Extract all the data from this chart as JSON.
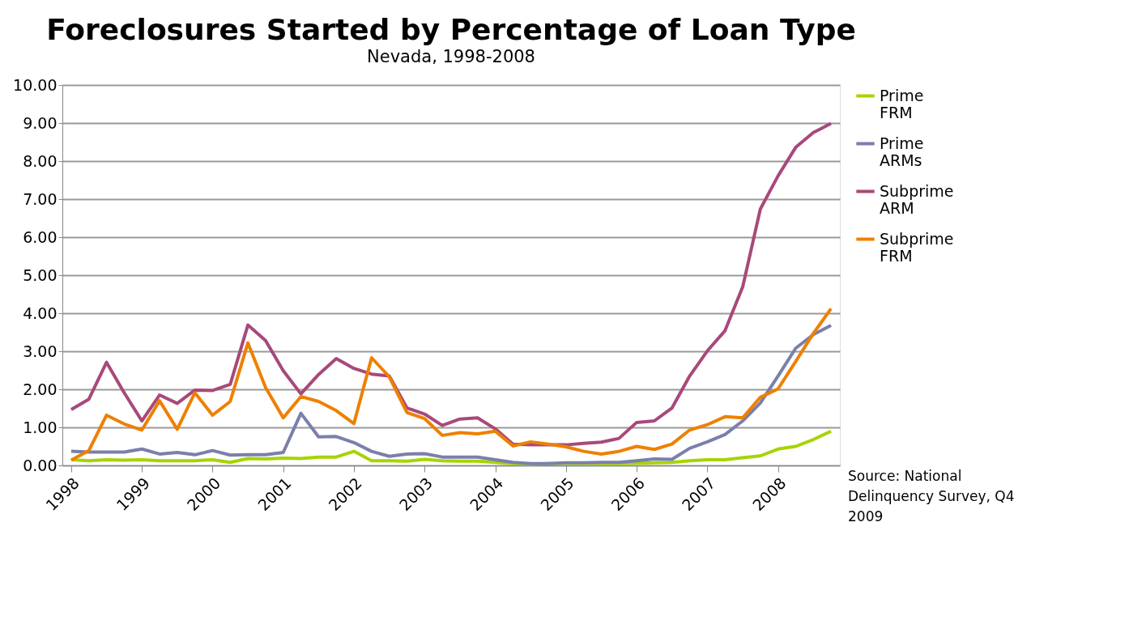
{
  "chart_data": {
    "type": "line",
    "title": "Foreclosures Started by Percentage of Loan Type",
    "subtitle": "Nevada, 1998-2008",
    "categories": [
      "1998",
      null,
      null,
      null,
      "1999",
      null,
      null,
      null,
      "2000",
      null,
      null,
      null,
      "2001",
      null,
      null,
      null,
      "2002",
      null,
      null,
      null,
      "2003",
      null,
      null,
      null,
      "2004",
      null,
      null,
      null,
      "2005",
      null,
      null,
      null,
      "2006",
      null,
      null,
      null,
      "2007",
      null,
      null,
      null,
      "2008",
      null,
      null,
      null
    ],
    "series": [
      {
        "name": "Prime FRM",
        "color": "#a6d400",
        "values": [
          0.15,
          0.12,
          0.15,
          0.14,
          0.15,
          0.12,
          0.12,
          0.12,
          0.15,
          0.08,
          0.18,
          0.17,
          0.19,
          0.18,
          0.22,
          0.22,
          0.37,
          0.12,
          0.12,
          0.11,
          0.16,
          0.12,
          0.11,
          0.11,
          0.08,
          0.05,
          0.03,
          0.05,
          0.05,
          0.05,
          0.05,
          0.05,
          0.06,
          0.07,
          0.08,
          0.12,
          0.15,
          0.15,
          0.2,
          0.25,
          0.43,
          0.5,
          0.68,
          0.9
        ]
      },
      {
        "name": "Prime ARMs",
        "color": "#7b7fab",
        "values": [
          0.37,
          0.35,
          0.35,
          0.35,
          0.43,
          0.3,
          0.34,
          0.28,
          0.39,
          0.27,
          0.28,
          0.28,
          0.34,
          1.37,
          0.75,
          0.76,
          0.6,
          0.37,
          0.24,
          0.3,
          0.31,
          0.22,
          0.22,
          0.22,
          0.15,
          0.08,
          0.05,
          0.05,
          0.07,
          0.07,
          0.08,
          0.08,
          0.12,
          0.17,
          0.16,
          0.45,
          0.62,
          0.81,
          1.17,
          1.64,
          2.35,
          3.08,
          3.44,
          3.68
        ]
      },
      {
        "name": "Subprime ARM",
        "color": "#a8497a",
        "values": [
          1.47,
          1.74,
          2.71,
          1.91,
          1.17,
          1.85,
          1.63,
          1.98,
          1.97,
          2.13,
          3.69,
          3.28,
          2.49,
          1.88,
          2.39,
          2.81,
          2.55,
          2.4,
          2.35,
          1.51,
          1.35,
          1.05,
          1.22,
          1.25,
          0.96,
          0.56,
          0.54,
          0.54,
          0.54,
          0.58,
          0.61,
          0.71,
          1.13,
          1.17,
          1.51,
          2.35,
          3.01,
          3.54,
          4.69,
          6.74,
          7.61,
          8.36,
          8.75,
          8.99
        ]
      },
      {
        "name": "Subprime FRM",
        "color": "#ee8000",
        "values": [
          0.14,
          0.39,
          1.32,
          1.09,
          0.93,
          1.7,
          0.95,
          1.91,
          1.32,
          1.68,
          3.22,
          2.05,
          1.25,
          1.81,
          1.68,
          1.44,
          1.1,
          2.83,
          2.33,
          1.39,
          1.23,
          0.79,
          0.86,
          0.83,
          0.9,
          0.51,
          0.62,
          0.56,
          0.49,
          0.37,
          0.3,
          0.37,
          0.5,
          0.42,
          0.56,
          0.93,
          1.07,
          1.28,
          1.25,
          1.79,
          2.01,
          2.73,
          3.47,
          4.12
        ]
      }
    ],
    "ylim": [
      0,
      10
    ],
    "yticks": [
      {
        "value": 0,
        "label": "0.00"
      },
      {
        "value": 1,
        "label": "1.00"
      },
      {
        "value": 2,
        "label": "2.00"
      },
      {
        "value": 3,
        "label": "3.00"
      },
      {
        "value": 4,
        "label": "4.00"
      },
      {
        "value": 5,
        "label": "5.00"
      },
      {
        "value": 6,
        "label": "6.00"
      },
      {
        "value": 7,
        "label": "7.00"
      },
      {
        "value": 8,
        "label": "8.00"
      },
      {
        "value": 9,
        "label": "9.00"
      },
      {
        "value": 10,
        "label": "10.00"
      }
    ],
    "grid": "y",
    "legend": "right",
    "marker": "none",
    "line_style": "solid",
    "annotations": [
      "Source: National Delinquency Survey, Q4 2009"
    ]
  }
}
